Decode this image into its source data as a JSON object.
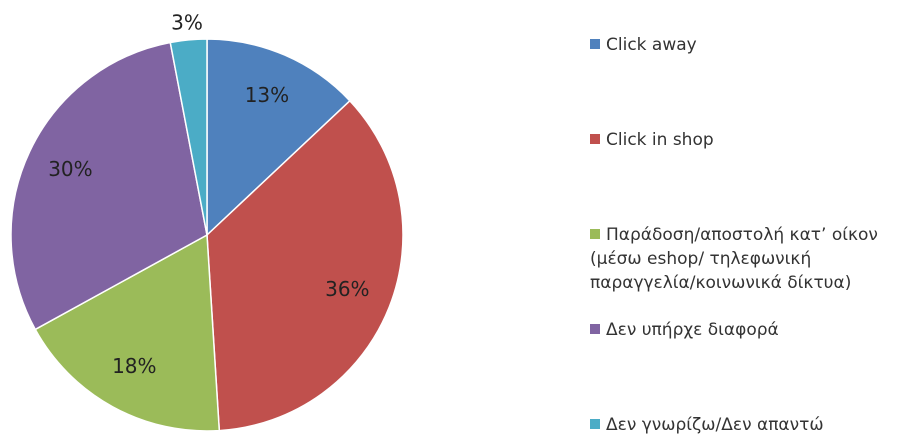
{
  "chart_data": {
    "type": "pie",
    "categories": [
      "Click away",
      "Click in shop",
      "Παράδοση/αποστολή κατ’ οίκον (μέσω eshop/ τηλεφωνική παραγγελία/κοινωνικά δίκτυα)",
      "Δεν υπήρχε διαφορά",
      "Δεν γνωρίζω/Δεν απαντώ"
    ],
    "values": [
      13,
      36,
      18,
      30,
      3
    ],
    "value_labels": [
      "13%",
      "36%",
      "18%",
      "30%",
      "3%"
    ],
    "colors": [
      "#4f81bd",
      "#c0504d",
      "#9bbb59",
      "#8064a2",
      "#4bacc6"
    ],
    "legend": "right"
  }
}
